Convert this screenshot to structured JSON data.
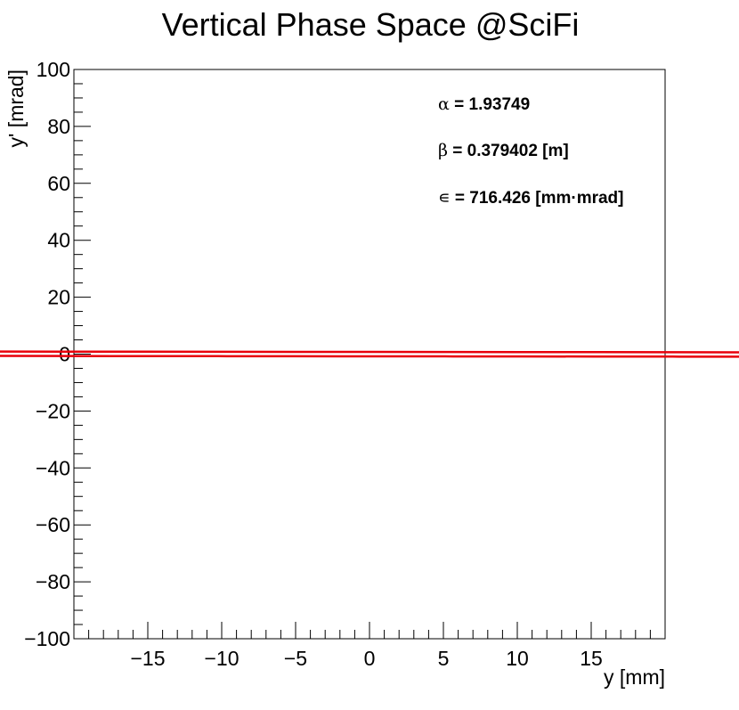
{
  "chart_data": {
    "type": "line",
    "title": "Vertical Phase Space @SciFi",
    "xlabel": "y [mm]",
    "ylabel": "y' [mrad]",
    "xlim": [
      -20,
      20
    ],
    "ylim": [
      -100,
      100
    ],
    "x_ticks": [
      -15,
      -10,
      -5,
      0,
      5,
      10,
      15
    ],
    "x_tick_labels": [
      "−15",
      "−10",
      "−5",
      "0",
      "5",
      "10",
      "15"
    ],
    "y_ticks": [
      -100,
      -80,
      -60,
      -40,
      -20,
      0,
      20,
      40,
      60,
      80,
      100
    ],
    "y_tick_labels": [
      "−100",
      "−80",
      "−60",
      "−40",
      "−20",
      "0",
      "20",
      "40",
      "60",
      "80",
      "100"
    ],
    "series": [
      {
        "name": "phase-space-ellipse",
        "color": "#e8000b",
        "twiss": {
          "alpha": 1.93749,
          "beta_m": 0.379402,
          "emittance_mm_mrad": 716.426
        }
      }
    ],
    "annotations": [
      {
        "symbol": "α",
        "text": " = 1.93749"
      },
      {
        "symbol": "β",
        "text": " = 0.379402 [m]"
      },
      {
        "symbol": "∊",
        "text": " = 716.426 [mm·mrad]"
      }
    ]
  }
}
